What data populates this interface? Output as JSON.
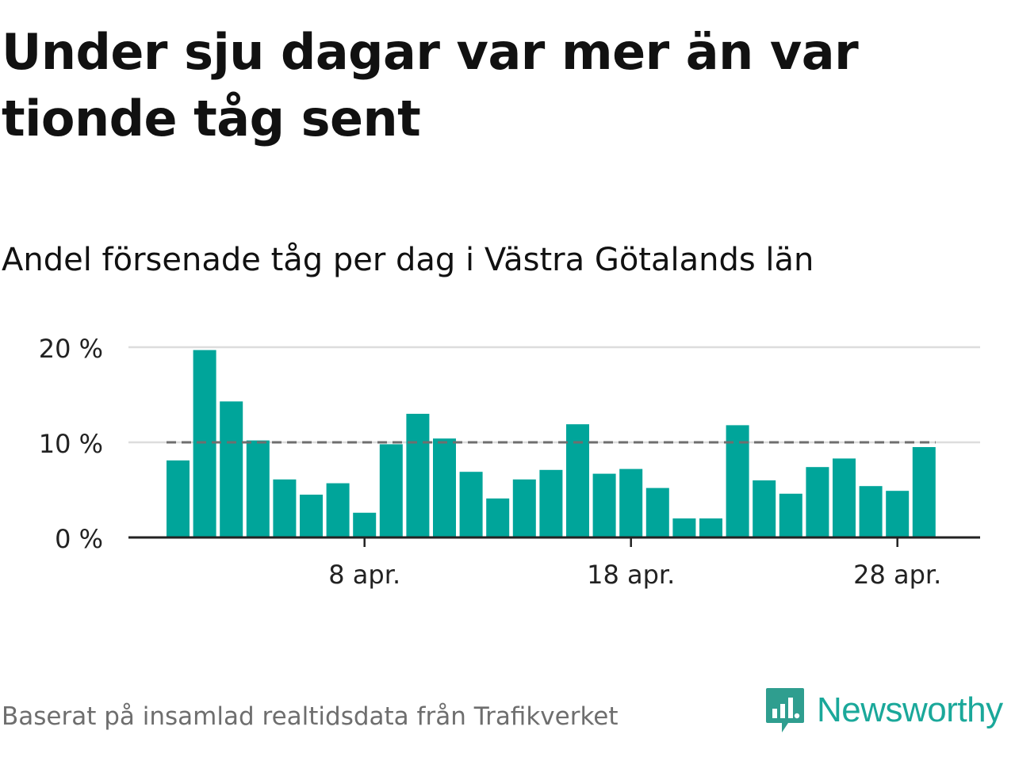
{
  "title": "Under sju dagar var mer än var tionde tåg sent",
  "subtitle": "Andel försenade tåg per dag i Västra Götalands län",
  "footer": "Baserat på insamlad realtidsdata från Trafikverket",
  "logo": {
    "text": "Newsworthy",
    "icon": "newsworthy-logo-icon"
  },
  "colors": {
    "bar": "#00a59a",
    "reference_line": "#6e6e6e",
    "grid": "#dddddd",
    "axis": "#222222",
    "brand": "#1aa89a"
  },
  "chart_data": {
    "type": "bar",
    "categories": [
      "2017-04-01",
      "2017-04-02",
      "2017-04-03",
      "2017-04-04",
      "2017-04-05",
      "2017-04-06",
      "2017-04-07",
      "2017-04-08",
      "2017-04-09",
      "2017-04-10",
      "2017-04-11",
      "2017-04-12",
      "2017-04-13",
      "2017-04-14",
      "2017-04-15",
      "2017-04-16",
      "2017-04-17",
      "2017-04-18",
      "2017-04-19",
      "2017-04-20",
      "2017-04-21",
      "2017-04-22",
      "2017-04-23",
      "2017-04-24",
      "2017-04-25",
      "2017-04-26",
      "2017-04-27",
      "2017-04-28",
      "2017-04-29"
    ],
    "values": [
      8.1,
      19.7,
      14.3,
      10.2,
      6.1,
      4.5,
      5.7,
      2.6,
      9.8,
      13.0,
      10.4,
      6.9,
      4.1,
      6.1,
      7.1,
      11.9,
      6.7,
      7.2,
      5.2,
      2.0,
      2.0,
      11.8,
      6.0,
      4.6,
      7.4,
      8.3,
      5.4,
      4.9,
      9.5
    ],
    "reference_line": 10,
    "ylim": [
      0,
      20
    ],
    "yticks": [
      0,
      10,
      20
    ],
    "ytick_labels": [
      "0 %",
      "10 %",
      "20 %"
    ],
    "xticks": [
      "2017-04-08",
      "2017-04-18",
      "2017-04-28"
    ],
    "xtick_labels": [
      "8 apr.",
      "18 apr.",
      "28 apr."
    ],
    "grid": true,
    "legend": "none"
  }
}
